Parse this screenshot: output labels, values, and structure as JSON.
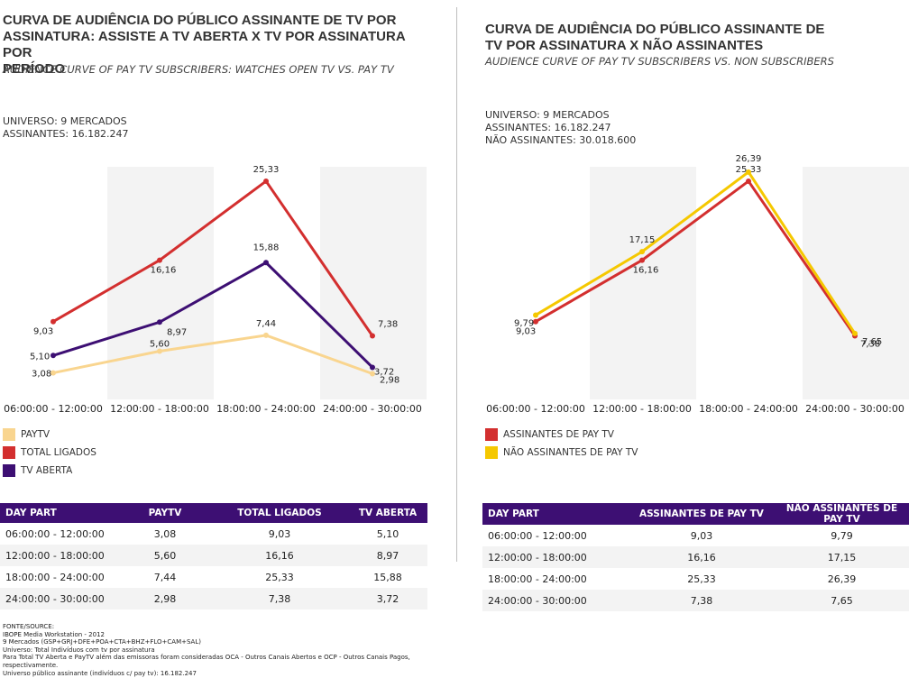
{
  "left": {
    "title_lines": [
      "CURVA DE AUDIÊNCIA DO PÚBLICO ASSINANTE DE TV POR",
      "ASSINATURA: ASSISTE A TV ABERTA X TV POR ASSINATURA POR",
      "PERÍODO"
    ],
    "subtitle": "AUDIENCE CURVE OF PAY TV SUBSCRIBERS: WATCHES OPEN TV VS. PAY TV",
    "universe_lines": [
      "UNIVERSO: 9 MERCADOS",
      "ASSINANTES: 16.182.247"
    ],
    "legend": [
      {
        "label": "PAYTV",
        "color": "#f9d58f"
      },
      {
        "label": "TOTAL LIGADOS",
        "color": "#d32f2f"
      },
      {
        "label": "TV ABERTA",
        "color": "#3d0f73"
      }
    ],
    "table": {
      "headers": [
        "DAY PART",
        "PAYTV",
        "TOTAL LIGADOS",
        "TV ABERTA"
      ],
      "rows": [
        [
          "06:00:00 - 12:00:00",
          "3,08",
          "9,03",
          "5,10"
        ],
        [
          "12:00:00 - 18:00:00",
          "5,60",
          "16,16",
          "8,97"
        ],
        [
          "18:00:00 - 24:00:00",
          "7,44",
          "25,33",
          "15,88"
        ],
        [
          "24:00:00 - 30:00:00",
          "2,98",
          "7,38",
          "3,72"
        ]
      ]
    }
  },
  "right": {
    "title_lines": [
      "CURVA DE AUDIÊNCIA DO PÚBLICO ASSINANTE DE",
      "TV POR ASSINATURA X NÃO ASSINANTES"
    ],
    "subtitle": "AUDIENCE CURVE OF PAY TV SUBSCRIBERS VS. NON SUBSCRIBERS",
    "universe_lines": [
      "UNIVERSO: 9 MERCADOS",
      "ASSINANTES: 16.182.247",
      "NÃO ASSINANTES: 30.018.600"
    ],
    "legend": [
      {
        "label": "ASSINANTES DE PAY TV",
        "color": "#d32f2f"
      },
      {
        "label": "NÃO ASSINANTES DE PAY TV",
        "color": "#f5c800"
      }
    ],
    "table": {
      "headers": [
        "DAY PART",
        "ASSINANTES DE PAY TV",
        "NÃO ASSINANTES DE PAY TV"
      ],
      "rows": [
        [
          "06:00:00 - 12:00:00",
          "9,03",
          "9,79"
        ],
        [
          "12:00:00 - 18:00:00",
          "16,16",
          "17,15"
        ],
        [
          "18:00:00 - 24:00:00",
          "25,33",
          "26,39"
        ],
        [
          "24:00:00 - 30:00:00",
          "7,38",
          "7,65"
        ]
      ]
    }
  },
  "source_lines": [
    "FONTE/SOURCE:",
    "IBOPE Media Workstation - 2012",
    "9 Mercados (GSP+GRJ+DFE+POA+CTA+BHZ+FLO+CAM+SAL)",
    "Universo: Total Indivíduos com tv por assinatura",
    "Para Total TV Aberta e PayTV além das emissoras foram consideradas OCA - Outros Canais Abertos e OCP - Outros Canais Pagos, respectivamente.",
    "Universo público assinante (indivíduos c/ pay tv): 16.182.247"
  ],
  "chart_data": [
    {
      "type": "line",
      "categories": [
        "06:00:00 - 12:00:00",
        "12:00:00 - 18:00:00",
        "18:00:00 - 24:00:00",
        "24:00:00 - 30:00:00"
      ],
      "series": [
        {
          "name": "PAYTV",
          "values": [
            3.08,
            5.6,
            7.44,
            2.98
          ],
          "labels": [
            "3,08",
            "5,60",
            "7,44",
            "2,98"
          ],
          "color": "#f9d58f"
        },
        {
          "name": "TOTAL LIGADOS",
          "values": [
            9.03,
            16.16,
            25.33,
            7.38
          ],
          "labels": [
            "9,03",
            "16,16",
            "25,33",
            "7,38"
          ],
          "color": "#d32f2f"
        },
        {
          "name": "TV ABERTA",
          "values": [
            5.1,
            8.97,
            15.88,
            3.72
          ],
          "labels": [
            "5,10",
            "8,97",
            "15,88",
            "3,72"
          ],
          "color": "#3d0f73"
        }
      ],
      "ylim": [
        0,
        27
      ],
      "grid": false,
      "legend": "bottom-left"
    },
    {
      "type": "line",
      "categories": [
        "06:00:00 - 12:00:00",
        "12:00:00 - 18:00:00",
        "18:00:00 - 24:00:00",
        "24:00:00 - 30:00:00"
      ],
      "series": [
        {
          "name": "ASSINANTES DE PAY TV",
          "values": [
            9.03,
            16.16,
            25.33,
            7.38
          ],
          "labels": [
            "9,03",
            "16,16",
            "25,33",
            "7,38"
          ],
          "color": "#d32f2f"
        },
        {
          "name": "NÃO ASSINANTES DE PAY TV",
          "values": [
            9.79,
            17.15,
            26.39,
            7.65
          ],
          "labels": [
            "9,79",
            "17,15",
            "26,39",
            "7,65"
          ],
          "color": "#f5c800"
        }
      ],
      "ylim": [
        0,
        27
      ],
      "grid": false,
      "legend": "bottom-left"
    }
  ]
}
